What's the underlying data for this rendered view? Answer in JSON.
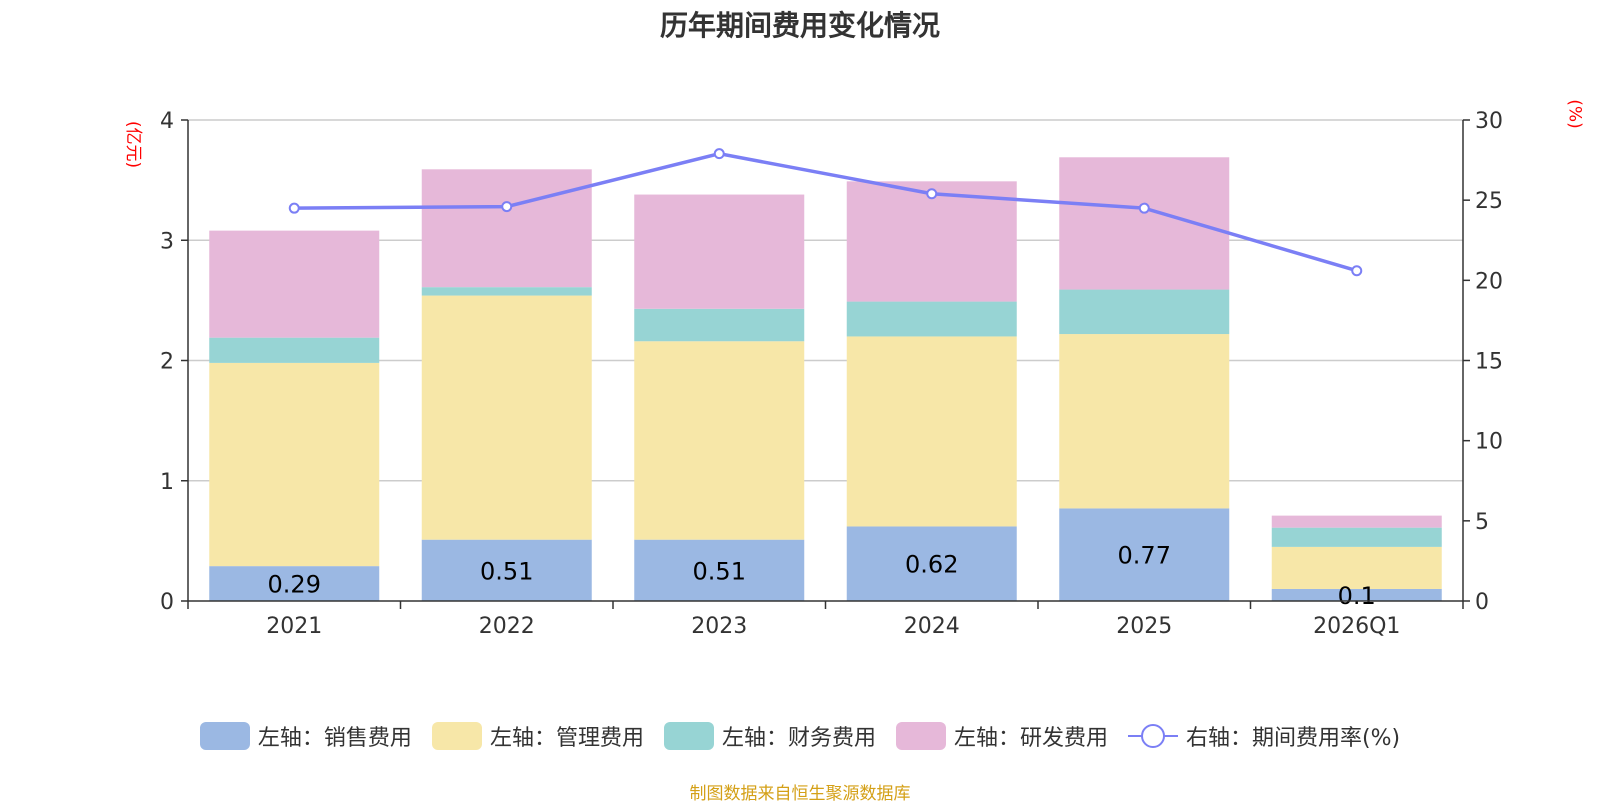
{
  "chart_data": {
    "type": "bar",
    "title": "历年期间费用变化情况",
    "categories": [
      "2021",
      "2022",
      "2023",
      "2024",
      "2025",
      "2026Q1"
    ],
    "y_left": {
      "unit": "(亿元)",
      "ticks": [
        "0",
        "1",
        "2",
        "3",
        "4"
      ],
      "ylim": [
        0,
        4
      ]
    },
    "y_right": {
      "unit": "(%)",
      "ticks": [
        "0",
        "5",
        "10",
        "15",
        "20",
        "25",
        "30"
      ],
      "ylim": [
        0,
        30
      ]
    },
    "series": [
      {
        "name": "左轴：销售费用",
        "axis": "left",
        "stack": true,
        "color": "#9bb8e3",
        "values": [
          0.29,
          0.51,
          0.51,
          0.62,
          0.77,
          0.1
        ],
        "labels": [
          "0.29",
          "0.51",
          "0.51",
          "0.62",
          "0.77",
          "0.1"
        ]
      },
      {
        "name": "左轴：管理费用",
        "axis": "left",
        "stack": true,
        "color": "#f7e7a8",
        "values": [
          1.69,
          2.03,
          1.65,
          1.58,
          1.45,
          0.35
        ]
      },
      {
        "name": "左轴：财务费用",
        "axis": "left",
        "stack": true,
        "color": "#97d4d4",
        "values": [
          0.21,
          0.07,
          0.27,
          0.29,
          0.37,
          0.16
        ]
      },
      {
        "name": "左轴：研发费用",
        "axis": "left",
        "stack": true,
        "color": "#e6b8d9",
        "values": [
          0.89,
          0.98,
          0.95,
          1.0,
          1.1,
          0.1
        ]
      },
      {
        "name": "右轴：期间费用率(%)",
        "axis": "right",
        "type": "line",
        "color": "#7b7ff5",
        "values": [
          24.5,
          24.6,
          27.9,
          25.4,
          24.5,
          20.6
        ]
      }
    ],
    "source": "制图数据来自恒生聚源数据库"
  }
}
